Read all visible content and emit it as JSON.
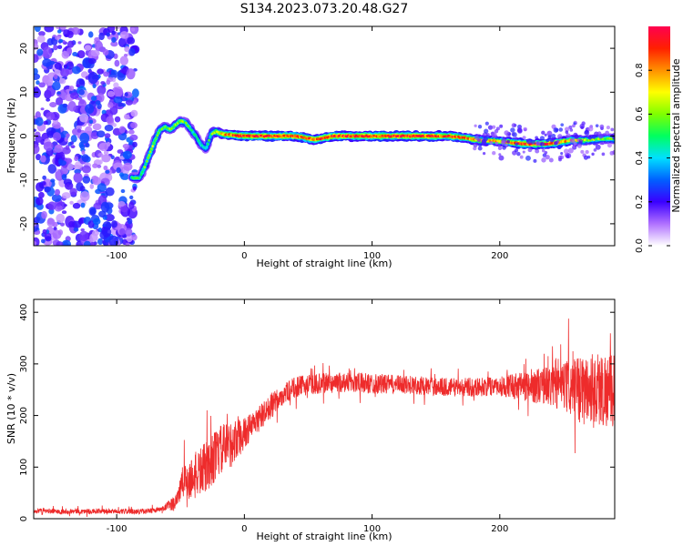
{
  "figure_title": "S134.2023.073.20.48.G27",
  "chart_data": [
    {
      "type": "heatmap",
      "title": "",
      "xlabel": "Height of straight line (km)",
      "ylabel": "Frequency (Hz)",
      "xlim": [
        -165,
        290
      ],
      "ylim": [
        -25,
        25
      ],
      "xticks": [
        -100,
        0,
        100,
        200
      ],
      "yticks": [
        -20,
        -10,
        0,
        10,
        20
      ],
      "colorbar": {
        "label": "Normalized spectral amplitude",
        "range": [
          0,
          1
        ],
        "ticks": [
          0.0,
          0.2,
          0.4,
          0.6,
          0.8
        ],
        "colormap": [
          "#ffffff",
          "#b070ff",
          "#3a00ff",
          "#0060ff",
          "#00e0ff",
          "#00ff60",
          "#80ff00",
          "#ffff00",
          "#ff9000",
          "#ff2000",
          "#ff0050"
        ]
      },
      "noise_region": {
        "x_range": [
          -165,
          -85
        ],
        "amplitude": 0.2
      },
      "ridge": {
        "x": [
          -88,
          -82,
          -78,
          -74,
          -70,
          -66,
          -62,
          -58,
          -54,
          -50,
          -46,
          -42,
          -38,
          -34,
          -30,
          -26,
          -22,
          -18,
          -10,
          0,
          20,
          40,
          55,
          70,
          100,
          130,
          160,
          175,
          185,
          200,
          210,
          220,
          235,
          245,
          255,
          265,
          275,
          285,
          290
        ],
        "frequency": [
          -9.5,
          -9.5,
          -7,
          -4,
          -1,
          1.5,
          2,
          1.5,
          2.5,
          3.5,
          3,
          1.5,
          0,
          -2,
          -3,
          0.5,
          1,
          0.5,
          0.2,
          0,
          0,
          0,
          -0.8,
          0,
          0,
          0,
          0,
          -0.5,
          -1,
          -1.2,
          -1.5,
          -1.8,
          -1.8,
          -1.5,
          -1,
          -1,
          -0.8,
          -0.6,
          -0.6
        ],
        "amplitude": [
          0.5,
          0.5,
          0.55,
          0.6,
          0.6,
          0.55,
          0.55,
          0.6,
          0.6,
          0.6,
          0.55,
          0.5,
          0.45,
          0.45,
          0.45,
          0.55,
          0.65,
          0.75,
          0.85,
          0.9,
          0.9,
          0.85,
          0.85,
          0.9,
          0.9,
          0.9,
          0.85,
          0.8,
          0.75,
          0.75,
          0.85,
          0.9,
          0.9,
          0.85,
          0.75,
          0.65,
          0.6,
          0.55,
          0.55
        ]
      }
    },
    {
      "type": "line",
      "title": "",
      "xlabel": "Height of straight line (km)",
      "ylabel": "SNR (10 * v/v)",
      "xlim": [
        -165,
        290
      ],
      "ylim": [
        0,
        425
      ],
      "xticks": [
        -100,
        0,
        100,
        200
      ],
      "yticks": [
        0,
        100,
        200,
        300,
        400
      ],
      "color": "#ee2b2b",
      "series": [
        {
          "x": [
            -165,
            -120,
            -80,
            -65,
            -55,
            -48,
            -40,
            -30,
            -20,
            -10,
            0,
            10,
            20,
            30,
            40,
            50,
            60,
            80,
            100,
            120,
            140,
            160,
            180,
            200,
            220,
            240,
            260,
            270,
            280,
            290
          ],
          "values": [
            15,
            14,
            14,
            18,
            30,
            70,
            80,
            100,
            130,
            145,
            165,
            190,
            215,
            240,
            255,
            260,
            262,
            265,
            262,
            260,
            258,
            255,
            255,
            257,
            258,
            258,
            250,
            250,
            250,
            250
          ],
          "noise": [
            5,
            5,
            5,
            5,
            15,
            35,
            45,
            50,
            50,
            45,
            30,
            25,
            25,
            20,
            20,
            20,
            20,
            20,
            20,
            18,
            18,
            18,
            18,
            20,
            30,
            40,
            60,
            75,
            75,
            70
          ]
        }
      ]
    }
  ]
}
